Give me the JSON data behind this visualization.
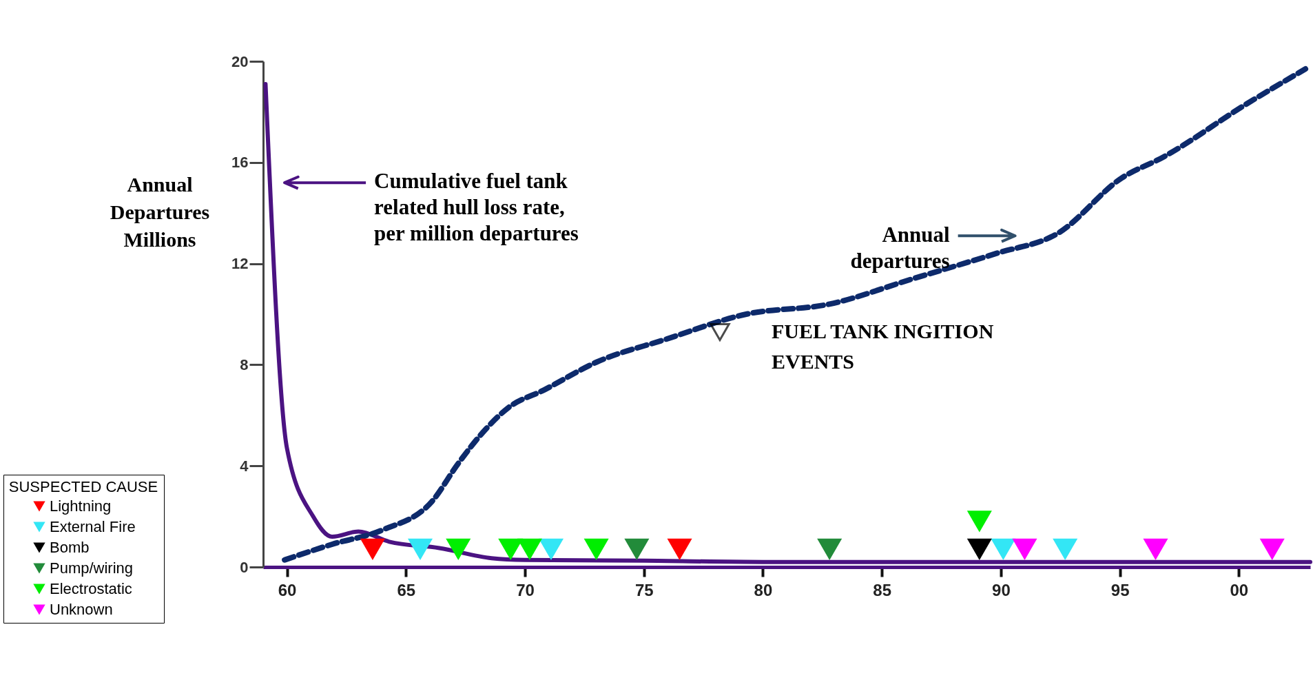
{
  "chart_data": {
    "type": "line",
    "ylabel": "Annual Departures Millions",
    "legend_title": "SUSPECTED CAUSE",
    "legend": "bottom left",
    "marker": "triangle",
    "grid": false,
    "xlim": [
      1959,
      2003
    ],
    "ylim": [
      0,
      20
    ],
    "xticks": [
      {
        "value": 1960,
        "label": "60"
      },
      {
        "value": 1965,
        "label": "65"
      },
      {
        "value": 1970,
        "label": "70"
      },
      {
        "value": 1975,
        "label": "75"
      },
      {
        "value": 1980,
        "label": "80"
      },
      {
        "value": 1985,
        "label": "85"
      },
      {
        "value": 1990,
        "label": "90"
      },
      {
        "value": 1995,
        "label": "95"
      },
      {
        "value": 2000,
        "label": "00"
      }
    ],
    "yticks": [
      0,
      4,
      8,
      12,
      16,
      20
    ],
    "series": [
      {
        "color": "#4b1382",
        "line_style": "solid",
        "marker": "none",
        "x": [
          1959.1,
          1960.0,
          1961.1,
          1961.9,
          1963.0,
          1964.3,
          1966.4,
          1968.6,
          1970,
          1975,
          1980,
          1990,
          2003
        ],
        "values": [
          19.1,
          4.7,
          2.0,
          1.2,
          1.4,
          1.0,
          0.75,
          0.35,
          0.28,
          0.25,
          0.2,
          0.2,
          0.2
        ]
      },
      {
        "color": "#0d2a6b",
        "line_style": "dashed",
        "marker": "none",
        "x": [
          1959.9,
          1961.9,
          1964.0,
          1966.1,
          1967.2,
          1968.4,
          1969.3,
          1970.8,
          1973.0,
          1975.9,
          1979.3,
          1982.8,
          1986.3,
          1989.8,
          1992.4,
          1995.1,
          1996.8,
          2000.3,
          2002.8
        ],
        "values": [
          0.28,
          0.9,
          1.46,
          2.6,
          4.1,
          5.5,
          6.3,
          7.0,
          8.1,
          9.0,
          10.0,
          10.4,
          11.4,
          12.4,
          13.2,
          15.4,
          16.2,
          18.3,
          19.7
        ]
      },
      {
        "type": "scatter",
        "name": "Lightning",
        "color": "#ff0000",
        "x": [
          1963.6,
          1976.5
        ],
        "values": [
          0.7,
          0.7
        ]
      },
      {
        "type": "scatter",
        "name": "External Fire",
        "color": "#33e6f5",
        "x": [
          1965.6,
          1971.1,
          1990.1,
          1992.7
        ],
        "values": [
          0.7,
          0.7,
          0.7,
          0.7
        ]
      },
      {
        "type": "scatter",
        "name": "Bomb",
        "color": "#000000",
        "x": [
          1989.1
        ],
        "values": [
          0.7
        ]
      },
      {
        "type": "scatter",
        "name": "Pump/wiring",
        "color": "#228b3a",
        "x": [
          1974.7,
          1982.8
        ],
        "values": [
          0.7,
          0.7
        ]
      },
      {
        "type": "scatter",
        "name": "Electrostatic",
        "color": "#00ee00",
        "x": [
          1967.2,
          1969.4,
          1970.2,
          1973.0,
          1989.1
        ],
        "values": [
          0.7,
          0.7,
          0.7,
          0.7,
          1.8
        ]
      },
      {
        "type": "scatter",
        "name": "Unknown",
        "color": "#ff00ff",
        "x": [
          1991.0,
          1996.5,
          2001.4
        ],
        "values": [
          0.7,
          0.7,
          0.7
        ]
      }
    ],
    "annotations": [
      "Cumulative fuel tank related hull loss rate, per million departures",
      "Annual departures",
      "FUEL TANK INGITION EVENTS"
    ]
  }
}
